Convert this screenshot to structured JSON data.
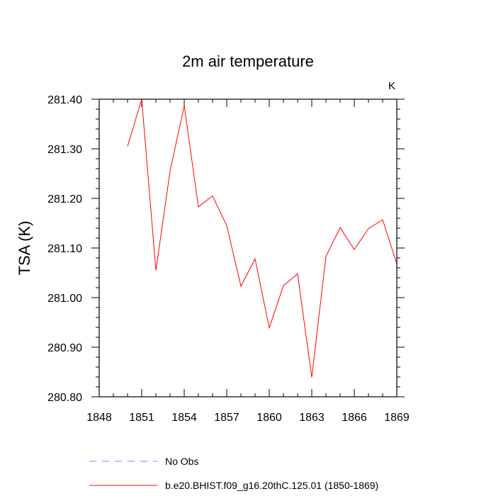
{
  "chart_data": {
    "type": "line",
    "title": "2m air temperature",
    "units_label": "K",
    "xlabel": "",
    "ylabel": "TSA  (K)",
    "xlim": [
      1848,
      1869
    ],
    "ylim": [
      280.8,
      281.4
    ],
    "x_ticks": [
      1848,
      1851,
      1854,
      1857,
      1860,
      1863,
      1866,
      1869
    ],
    "y_ticks": [
      280.8,
      280.9,
      281.0,
      281.1,
      281.2,
      281.3,
      281.4
    ],
    "y_tick_labels": [
      "280.80",
      "280.90",
      "281.00",
      "281.10",
      "281.20",
      "281.30",
      "281.40"
    ],
    "series": [
      {
        "name": "b.e20.BHIST.f09_g16.20thC.125.01 (1850-1869)",
        "color": "#ff0000",
        "x": [
          1850,
          1851,
          1852,
          1853,
          1854,
          1855,
          1856,
          1857,
          1858,
          1859,
          1860,
          1861,
          1862,
          1863,
          1864,
          1865,
          1866,
          1867,
          1868,
          1869
        ],
        "values": [
          281.305,
          281.4,
          281.055,
          281.255,
          281.387,
          281.183,
          281.205,
          281.145,
          281.023,
          281.078,
          280.939,
          281.024,
          281.048,
          280.839,
          281.083,
          281.141,
          281.097,
          281.139,
          281.157,
          281.068
        ]
      }
    ],
    "legend": [
      {
        "label": "No Obs",
        "color": "#8080ff",
        "style": "dashed"
      },
      {
        "label": "b.e20.BHIST.f09_g16.20thC.125.01 (1850-1869)",
        "color": "#ff0000",
        "style": "solid"
      }
    ]
  }
}
